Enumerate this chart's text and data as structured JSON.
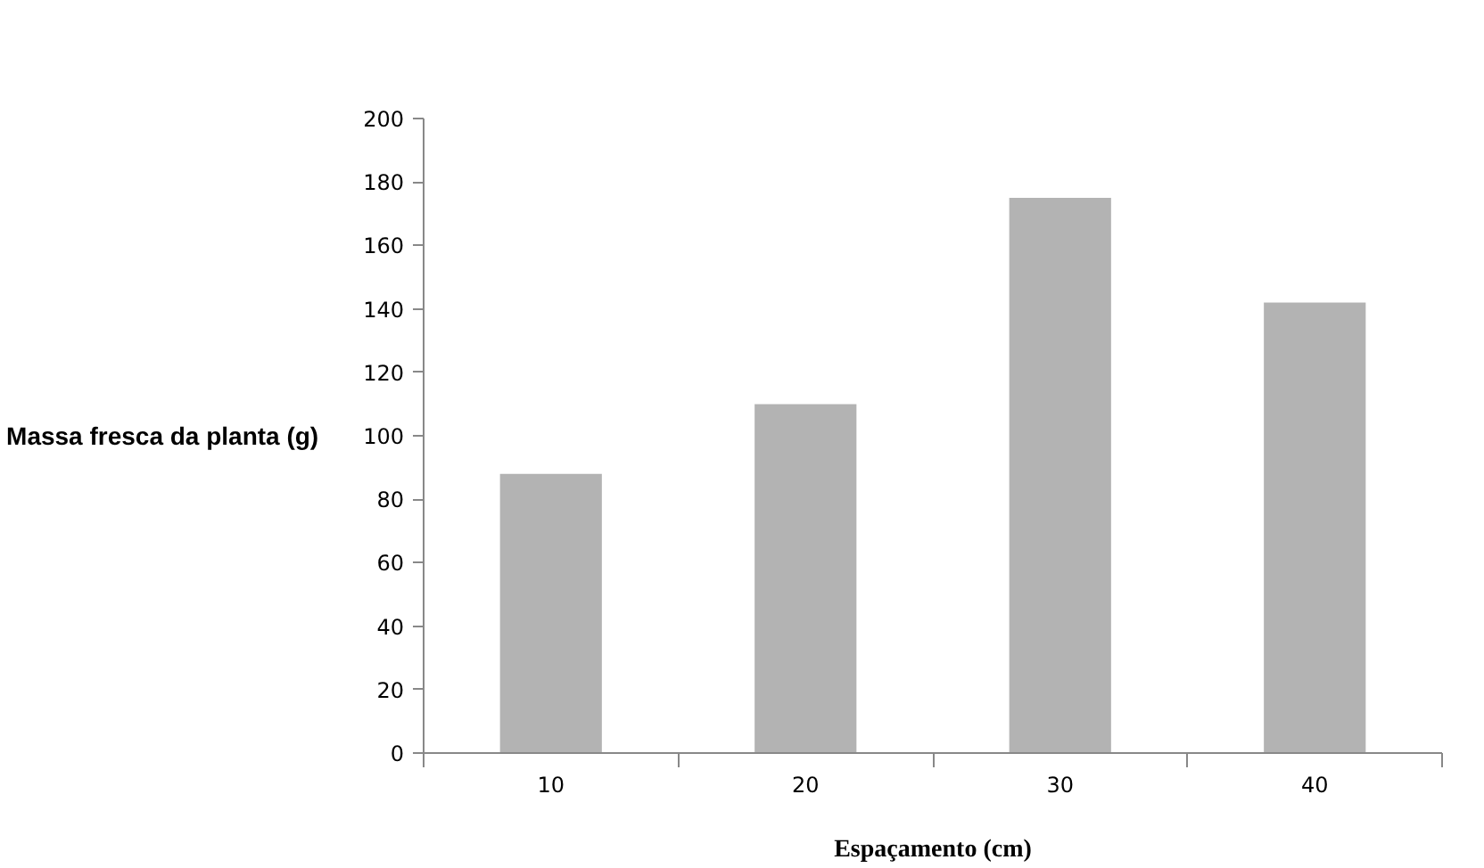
{
  "chart_data": {
    "type": "bar",
    "xlabel": "Espaçamento (cm)",
    "ylabel": "Massa fresca da planta (g)",
    "categories": [
      "10",
      "20",
      "30",
      "40"
    ],
    "values": [
      88,
      110,
      175,
      142
    ],
    "color": "#b3b3b3",
    "ylim": [
      0,
      200
    ],
    "yticks": [
      0,
      20,
      40,
      60,
      80,
      100,
      120,
      140,
      160,
      180,
      200
    ],
    "grid": false
  }
}
